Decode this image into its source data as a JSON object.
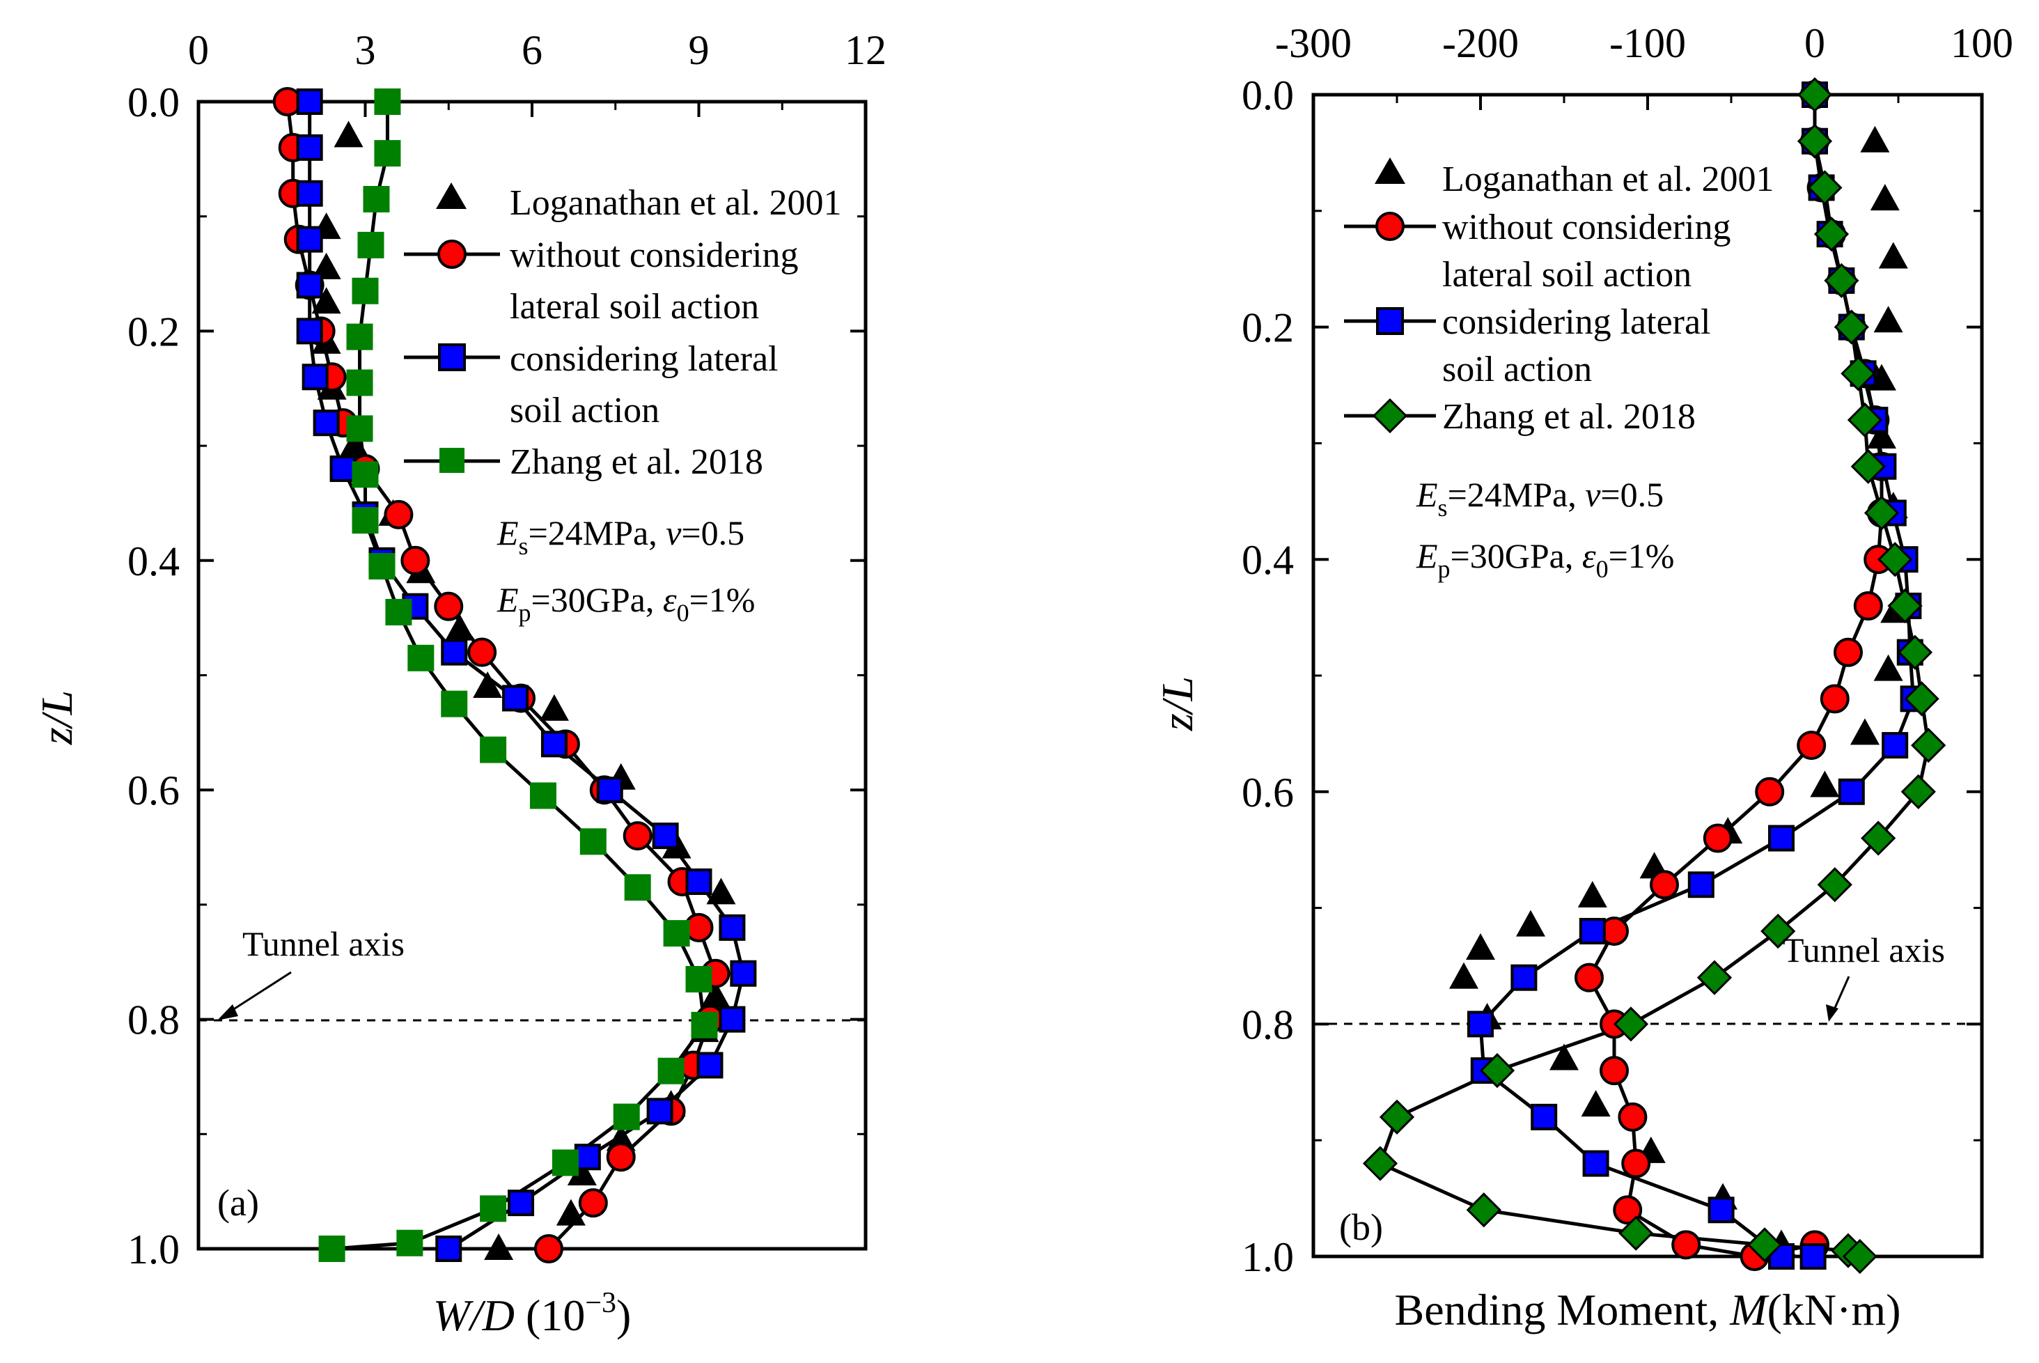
{
  "chart_data": [
    {
      "type": "line",
      "panel_label": "(a)",
      "xlabel": {
        "main": "W/D",
        "unit_open": " (10",
        "unit_exp": "−3",
        "unit_close": ")"
      },
      "ylabel": "z/L",
      "xlim": [
        0,
        12
      ],
      "ylim": [
        0,
        1.0
      ],
      "y_inverted": true,
      "x_axis_position": "top",
      "xticks": [
        0,
        3,
        6,
        9,
        12
      ],
      "xtick_labels": [
        "0",
        "3",
        "6",
        "9",
        "12"
      ],
      "yticks": [
        0.0,
        0.2,
        0.4,
        0.6,
        0.8,
        1.0
      ],
      "ytick_labels": [
        "0.0",
        "0.2",
        "0.4",
        "0.6",
        "0.8",
        "1.0"
      ],
      "grid": false,
      "legend_position": "top-right",
      "reference_line": {
        "y": 0.8,
        "label": "Tunnel axis"
      },
      "params": [
        "E_s=24MPa, v=0.5",
        "E_p=30GPa, ε0=1%"
      ],
      "series": [
        {
          "name": "Loganathan et al. 2001",
          "marker": "triangle",
          "color": "#000000",
          "line": false,
          "x": [
            2.7,
            2.3,
            2.3,
            2.3,
            2.3,
            2.4,
            2.8,
            3.5,
            4.0,
            4.7,
            5.2,
            6.4,
            7.6,
            8.6,
            9.4,
            9.3,
            9.1,
            8.8,
            8.5,
            7.6,
            6.9,
            6.7,
            5.4
          ],
          "y": [
            0.03,
            0.11,
            0.145,
            0.175,
            0.21,
            0.25,
            0.3,
            0.36,
            0.41,
            0.46,
            0.51,
            0.53,
            0.59,
            0.65,
            0.69,
            0.78,
            0.81,
            0.84,
            0.875,
            0.905,
            0.935,
            0.97,
            1.0
          ]
        },
        {
          "name": "without considering lateral soil action",
          "marker": "circle",
          "color": "#ff0000",
          "line": true,
          "x": [
            1.6,
            1.7,
            1.7,
            1.8,
            2.0,
            2.2,
            2.4,
            2.6,
            3.0,
            3.6,
            3.9,
            4.5,
            5.1,
            5.8,
            6.6,
            7.3,
            7.9,
            8.7,
            9.0,
            9.3,
            9.2,
            8.9,
            8.5,
            7.6,
            7.1,
            6.3
          ],
          "y": [
            0.0,
            0.04,
            0.08,
            0.12,
            0.16,
            0.2,
            0.24,
            0.28,
            0.32,
            0.36,
            0.4,
            0.44,
            0.48,
            0.52,
            0.56,
            0.6,
            0.64,
            0.68,
            0.72,
            0.76,
            0.8,
            0.84,
            0.88,
            0.92,
            0.96,
            1.0
          ]
        },
        {
          "name": "considering lateral soil action",
          "marker": "square",
          "color": "#0000ff",
          "line": true,
          "x": [
            2.0,
            2.0,
            2.0,
            2.0,
            2.0,
            2.0,
            2.1,
            2.3,
            2.6,
            3.0,
            3.3,
            3.9,
            4.6,
            5.7,
            6.4,
            7.4,
            8.4,
            9.0,
            9.6,
            9.8,
            9.6,
            9.2,
            8.3,
            7.0,
            5.8,
            4.5
          ],
          "y": [
            0.0,
            0.04,
            0.08,
            0.12,
            0.16,
            0.2,
            0.24,
            0.28,
            0.32,
            0.36,
            0.4,
            0.44,
            0.48,
            0.52,
            0.56,
            0.6,
            0.64,
            0.68,
            0.72,
            0.76,
            0.8,
            0.84,
            0.88,
            0.92,
            0.96,
            1.0
          ]
        },
        {
          "name": "Zhang et al. 2018",
          "marker": "square",
          "color": "#008000",
          "line": true,
          "x": [
            3.4,
            3.4,
            3.2,
            3.1,
            3.0,
            2.9,
            2.9,
            2.9,
            3.0,
            3.0,
            3.3,
            3.6,
            4.0,
            4.6,
            5.3,
            6.2,
            7.1,
            7.9,
            8.6,
            9.0,
            9.1,
            8.5,
            7.7,
            6.6,
            5.3,
            3.8,
            2.4
          ],
          "y": [
            0.0,
            0.045,
            0.085,
            0.125,
            0.165,
            0.205,
            0.245,
            0.285,
            0.325,
            0.365,
            0.405,
            0.445,
            0.485,
            0.525,
            0.565,
            0.605,
            0.645,
            0.685,
            0.725,
            0.765,
            0.805,
            0.845,
            0.885,
            0.925,
            0.965,
            0.995,
            1.0
          ]
        }
      ]
    },
    {
      "type": "line",
      "panel_label": "(b)",
      "xlabel": {
        "main": "Bending Moment, ",
        "var": "M",
        "unit": "(kN·m)"
      },
      "ylabel": "z/L",
      "xlim": [
        -300,
        100
      ],
      "ylim": [
        0,
        1.0
      ],
      "y_inverted": true,
      "x_axis_position": "top",
      "xticks": [
        -300,
        -200,
        -100,
        0,
        100
      ],
      "xtick_labels": [
        "-300",
        "-200",
        "-100",
        "0",
        "100"
      ],
      "yticks": [
        0.0,
        0.2,
        0.4,
        0.6,
        0.8,
        1.0
      ],
      "ytick_labels": [
        "0.0",
        "0.2",
        "0.4",
        "0.6",
        "0.8",
        "1.0"
      ],
      "grid": false,
      "legend_position": "top-right",
      "reference_line": {
        "y": 0.8,
        "label": "Tunnel axis"
      },
      "params": [
        "E_s=24MPa, v=0.5",
        "E_p=30GPa, ε0=1%"
      ],
      "series": [
        {
          "name": "Loganathan et al. 2001",
          "marker": "triangle",
          "color": "#000000",
          "line": false,
          "x": [
            36,
            42,
            47,
            44,
            40,
            40,
            47,
            48,
            44,
            30,
            6,
            -52,
            -96,
            -133,
            -170,
            -200,
            -210,
            -196,
            -150,
            -131,
            -98,
            -55,
            -20
          ],
          "y": [
            0.04,
            0.09,
            0.14,
            0.195,
            0.245,
            0.295,
            0.355,
            0.445,
            0.495,
            0.55,
            0.595,
            0.635,
            0.665,
            0.69,
            0.715,
            0.735,
            0.76,
            0.795,
            0.83,
            0.87,
            0.91,
            0.95,
            0.99
          ]
        },
        {
          "name": "without considering lateral soil action",
          "marker": "circle",
          "color": "#ff0000",
          "line": true,
          "x": [
            0,
            0,
            4,
            10,
            16,
            22,
            30,
            36,
            40,
            40,
            38,
            32,
            20,
            12,
            -2,
            -27,
            -58,
            -90,
            -120,
            -135,
            -120,
            -120,
            -109,
            -107,
            -112,
            -77,
            -36,
            0
          ],
          "y": [
            0.0,
            0.04,
            0.08,
            0.12,
            0.16,
            0.2,
            0.24,
            0.28,
            0.32,
            0.36,
            0.4,
            0.44,
            0.48,
            0.52,
            0.56,
            0.6,
            0.64,
            0.68,
            0.72,
            0.76,
            0.8,
            0.84,
            0.88,
            0.92,
            0.96,
            0.99,
            1.0,
            0.99
          ]
        },
        {
          "name": "considering lateral soil action",
          "marker": "square",
          "color": "#0000ff",
          "line": true,
          "x": [
            0,
            0,
            4,
            9,
            16,
            22,
            29,
            36,
            41,
            47,
            54,
            56,
            57,
            59,
            48,
            22,
            -20,
            -68,
            -133,
            -174,
            -200,
            -198,
            -162,
            -131,
            -56,
            -20,
            -1
          ],
          "y": [
            0.0,
            0.04,
            0.08,
            0.12,
            0.16,
            0.2,
            0.24,
            0.28,
            0.32,
            0.36,
            0.4,
            0.44,
            0.48,
            0.52,
            0.56,
            0.6,
            0.64,
            0.68,
            0.72,
            0.76,
            0.8,
            0.84,
            0.88,
            0.92,
            0.96,
            1.0,
            1.0
          ]
        },
        {
          "name": "Zhang et al. 2018",
          "marker": "diamond",
          "color": "#008000",
          "line": true,
          "x": [
            0,
            0,
            6,
            10,
            16,
            22,
            26,
            30,
            32,
            40,
            48,
            54,
            60,
            64,
            68,
            62,
            38,
            12,
            -22,
            -60,
            -110,
            -190,
            -250,
            -260,
            -198,
            -107,
            -30,
            20,
            27
          ],
          "y": [
            0.0,
            0.04,
            0.08,
            0.12,
            0.16,
            0.2,
            0.24,
            0.28,
            0.32,
            0.36,
            0.4,
            0.44,
            0.48,
            0.52,
            0.56,
            0.6,
            0.64,
            0.68,
            0.72,
            0.76,
            0.8,
            0.84,
            0.88,
            0.92,
            0.96,
            0.98,
            0.99,
            0.995,
            1.0
          ]
        }
      ]
    }
  ],
  "panel_a": {
    "legend": [
      "Loganathan et al. 2001",
      "without considering",
      "lateral soil action",
      "considering lateral",
      "soil action",
      "Zhang et al. 2018"
    ],
    "param_1": {
      "sym": "E",
      "sub": "s",
      "rest": "=24MPa, ",
      "var": "v",
      "end": "=0.5"
    },
    "param_2": {
      "sym": "E",
      "sub": "p",
      "rest": "=30GPa, ",
      "var": "ε",
      "sub2": "0",
      "end": "=1%"
    },
    "tunnel_label": "Tunnel axis",
    "panel_label": "(a)",
    "ylabel_main": "z",
    "ylabel_rest": "/L"
  },
  "panel_b": {
    "legend": [
      "Loganathan et al. 2001",
      "without considering",
      "lateral soil action",
      "considering lateral",
      "soil action",
      "Zhang et al. 2018"
    ],
    "param_1": {
      "sym": "E",
      "sub": "s",
      "rest": "=24MPa, ",
      "var": "v",
      "end": "=0.5"
    },
    "param_2": {
      "sym": "E",
      "sub": "p",
      "rest": "=30GPa, ",
      "var": "ε",
      "sub2": "0",
      "end": "=1%"
    },
    "tunnel_label": "Tunnel axis",
    "panel_label": "(b)",
    "ylabel_main": "z",
    "ylabel_rest": "/L"
  }
}
